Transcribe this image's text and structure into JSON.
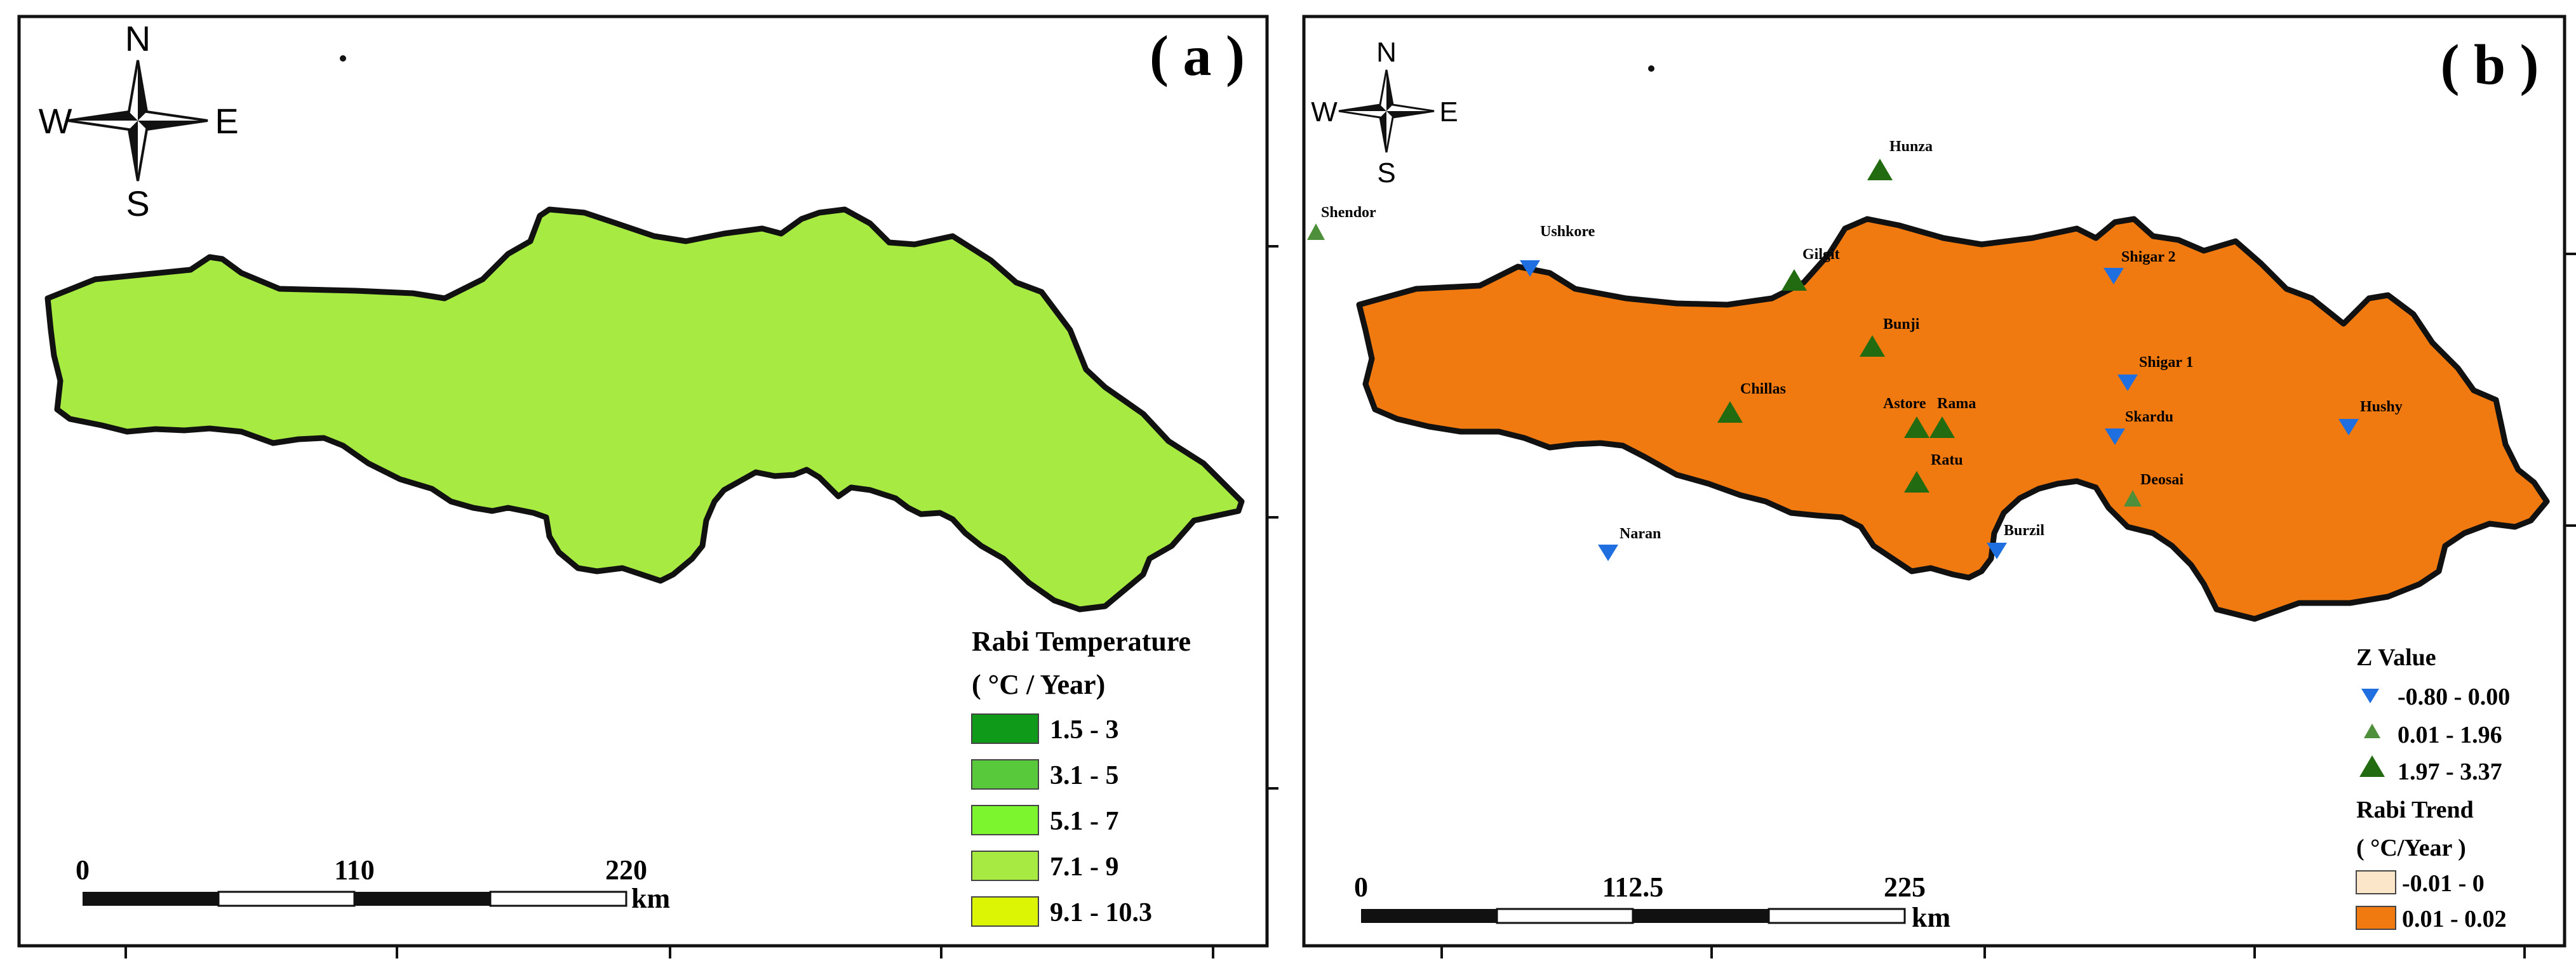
{
  "panels": {
    "a": {
      "label": "( a )",
      "compass": {
        "n": "N",
        "s": "S",
        "e": "E",
        "w": "W"
      },
      "legend": {
        "title": "Rabi Temperature",
        "unit": "( °C / Year)",
        "classes": [
          {
            "label": "1.5 - 3",
            "color": "#109a1a"
          },
          {
            "label": "3.1 - 5",
            "color": "#57c93a"
          },
          {
            "label": "5.1 - 7",
            "color": "#7cf52e"
          },
          {
            "label": "7.1 - 9",
            "color": "#a6ea42"
          },
          {
            "label": "9.1 - 10.3",
            "color": "#dbf505"
          }
        ]
      },
      "scale": {
        "ticks": [
          "0",
          "110",
          "220"
        ],
        "unit": "km"
      }
    },
    "b": {
      "label": "( b )",
      "compass": {
        "n": "N",
        "s": "S",
        "e": "E",
        "w": "W"
      },
      "legend": {
        "z_title": "Z Value",
        "z_classes": [
          {
            "label": "-0.80 - 0.00",
            "symbol": "down-triangle",
            "color": "#1f6fe0"
          },
          {
            "label": "0.01 - 1.96",
            "symbol": "small-up-triangle",
            "color": "#4d8f3a"
          },
          {
            "label": "1.97 - 3.37",
            "symbol": "large-up-triangle",
            "color": "#226b10"
          }
        ],
        "trend_title": "Rabi Trend",
        "trend_unit": "( °C/Year )",
        "trend_classes": [
          {
            "label": "-0.01 - 0",
            "color": "#fbe6c9"
          },
          {
            "label": "0.01 - 0.02",
            "color": "#f07a10"
          }
        ]
      },
      "scale": {
        "ticks": [
          "0",
          "112.5",
          "225"
        ],
        "unit": "km"
      },
      "stations": [
        {
          "name": "Hunza",
          "class": "large-up-triangle"
        },
        {
          "name": "Shendor",
          "class": "small-up-triangle"
        },
        {
          "name": "Ushkore",
          "class": "down-triangle"
        },
        {
          "name": "Gilgit",
          "class": "large-up-triangle"
        },
        {
          "name": "Bunji",
          "class": "large-up-triangle"
        },
        {
          "name": "Chillas",
          "class": "large-up-triangle"
        },
        {
          "name": "Astore",
          "class": "large-up-triangle"
        },
        {
          "name": "Rama",
          "class": "large-up-triangle"
        },
        {
          "name": "Ratu",
          "class": "large-up-triangle"
        },
        {
          "name": "Shigar 2",
          "class": "down-triangle"
        },
        {
          "name": "Shigar 1",
          "class": "down-triangle"
        },
        {
          "name": "Skardu",
          "class": "down-triangle"
        },
        {
          "name": "Hushy",
          "class": "down-triangle"
        },
        {
          "name": "Deosai",
          "class": "small-up-triangle"
        },
        {
          "name": "Burzil",
          "class": "down-triangle"
        },
        {
          "name": "Naran",
          "class": "down-triangle"
        }
      ]
    }
  }
}
